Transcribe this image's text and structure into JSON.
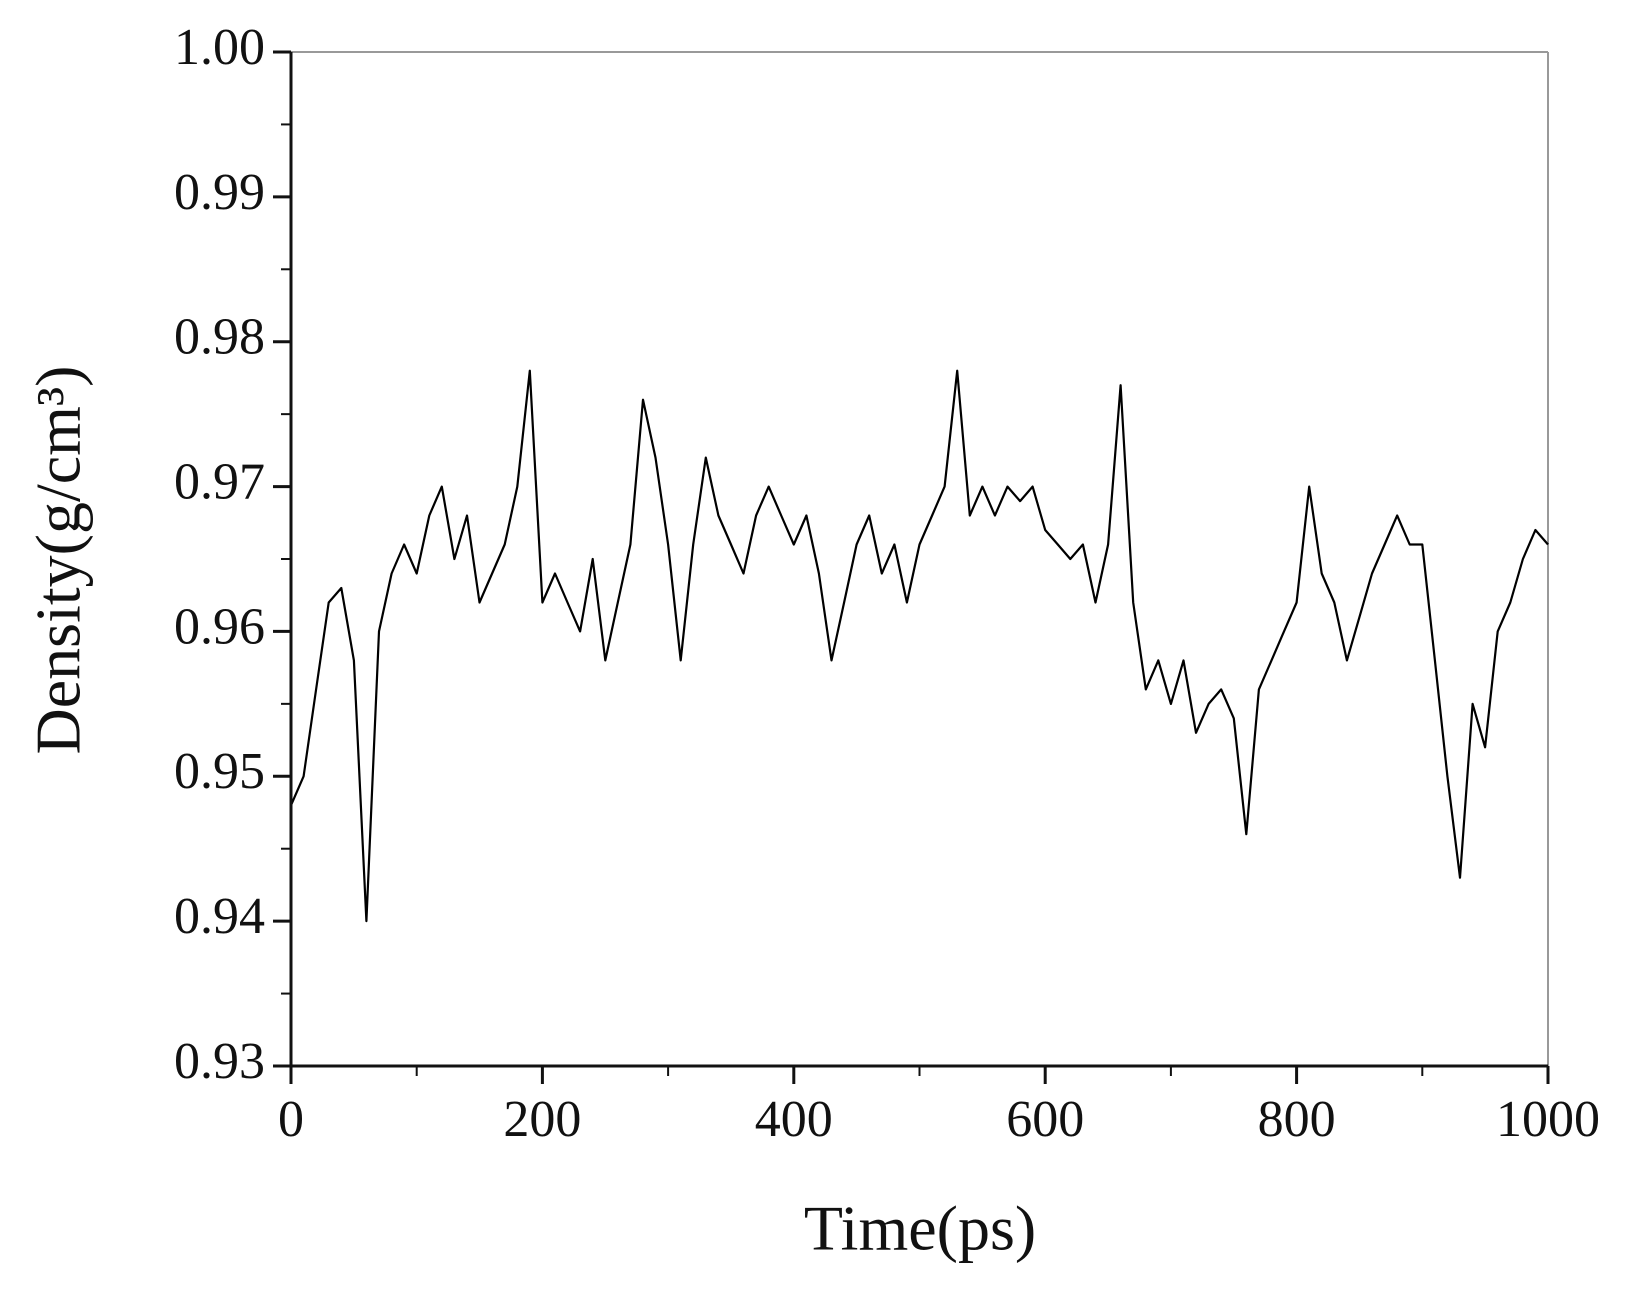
{
  "chart_data": {
    "type": "line",
    "x_label": "Time(ps)",
    "y_label": "Density(g/cm³)",
    "color": "#000000",
    "x": [
      0,
      10,
      20,
      30,
      40,
      50,
      60,
      70,
      80,
      90,
      100,
      110,
      120,
      130,
      140,
      150,
      160,
      170,
      180,
      190,
      200,
      210,
      220,
      230,
      240,
      250,
      260,
      270,
      280,
      290,
      300,
      310,
      320,
      330,
      340,
      350,
      360,
      370,
      380,
      390,
      400,
      410,
      420,
      430,
      440,
      450,
      460,
      470,
      480,
      490,
      500,
      510,
      520,
      530,
      540,
      550,
      560,
      570,
      580,
      590,
      600,
      610,
      620,
      630,
      640,
      650,
      660,
      670,
      680,
      690,
      700,
      710,
      720,
      730,
      740,
      750,
      760,
      770,
      780,
      790,
      800,
      810,
      820,
      830,
      840,
      850,
      860,
      870,
      880,
      890,
      900,
      910,
      920,
      930,
      940,
      950,
      960,
      970,
      980,
      990,
      1000
    ],
    "values": [
      0.948,
      0.95,
      0.956,
      0.962,
      0.963,
      0.958,
      0.94,
      0.96,
      0.964,
      0.966,
      0.964,
      0.968,
      0.97,
      0.965,
      0.968,
      0.962,
      0.964,
      0.966,
      0.97,
      0.978,
      0.962,
      0.964,
      0.962,
      0.96,
      0.965,
      0.958,
      0.962,
      0.966,
      0.976,
      0.972,
      0.966,
      0.958,
      0.966,
      0.972,
      0.968,
      0.966,
      0.964,
      0.968,
      0.97,
      0.968,
      0.966,
      0.968,
      0.964,
      0.958,
      0.962,
      0.966,
      0.968,
      0.964,
      0.966,
      0.962,
      0.966,
      0.968,
      0.97,
      0.978,
      0.968,
      0.97,
      0.968,
      0.97,
      0.969,
      0.97,
      0.967,
      0.966,
      0.965,
      0.966,
      0.962,
      0.966,
      0.977,
      0.962,
      0.956,
      0.958,
      0.955,
      0.958,
      0.953,
      0.955,
      0.956,
      0.954,
      0.946,
      0.956,
      0.958,
      0.96,
      0.962,
      0.97,
      0.964,
      0.962,
      0.958,
      0.961,
      0.964,
      0.966,
      0.968,
      0.966,
      0.966,
      0.958,
      0.95,
      0.943,
      0.955,
      0.952,
      0.96,
      0.962,
      0.965,
      0.967,
      0.966
    ],
    "xlim": [
      0,
      1000
    ],
    "xticks": [
      0,
      200,
      400,
      600,
      800,
      1000
    ],
    "xminorticks": [
      100,
      300,
      500,
      700,
      900
    ],
    "ylim": [
      0.93,
      1.0
    ],
    "yticks": [
      0.93,
      0.94,
      0.95,
      0.96,
      0.97,
      0.98,
      0.99,
      {
        "value": 1.0,
        "label": "1.00"
      }
    ],
    "yminorticks": [
      0.935,
      0.945,
      0.955,
      0.965,
      0.975,
      0.985,
      0.995
    ]
  }
}
